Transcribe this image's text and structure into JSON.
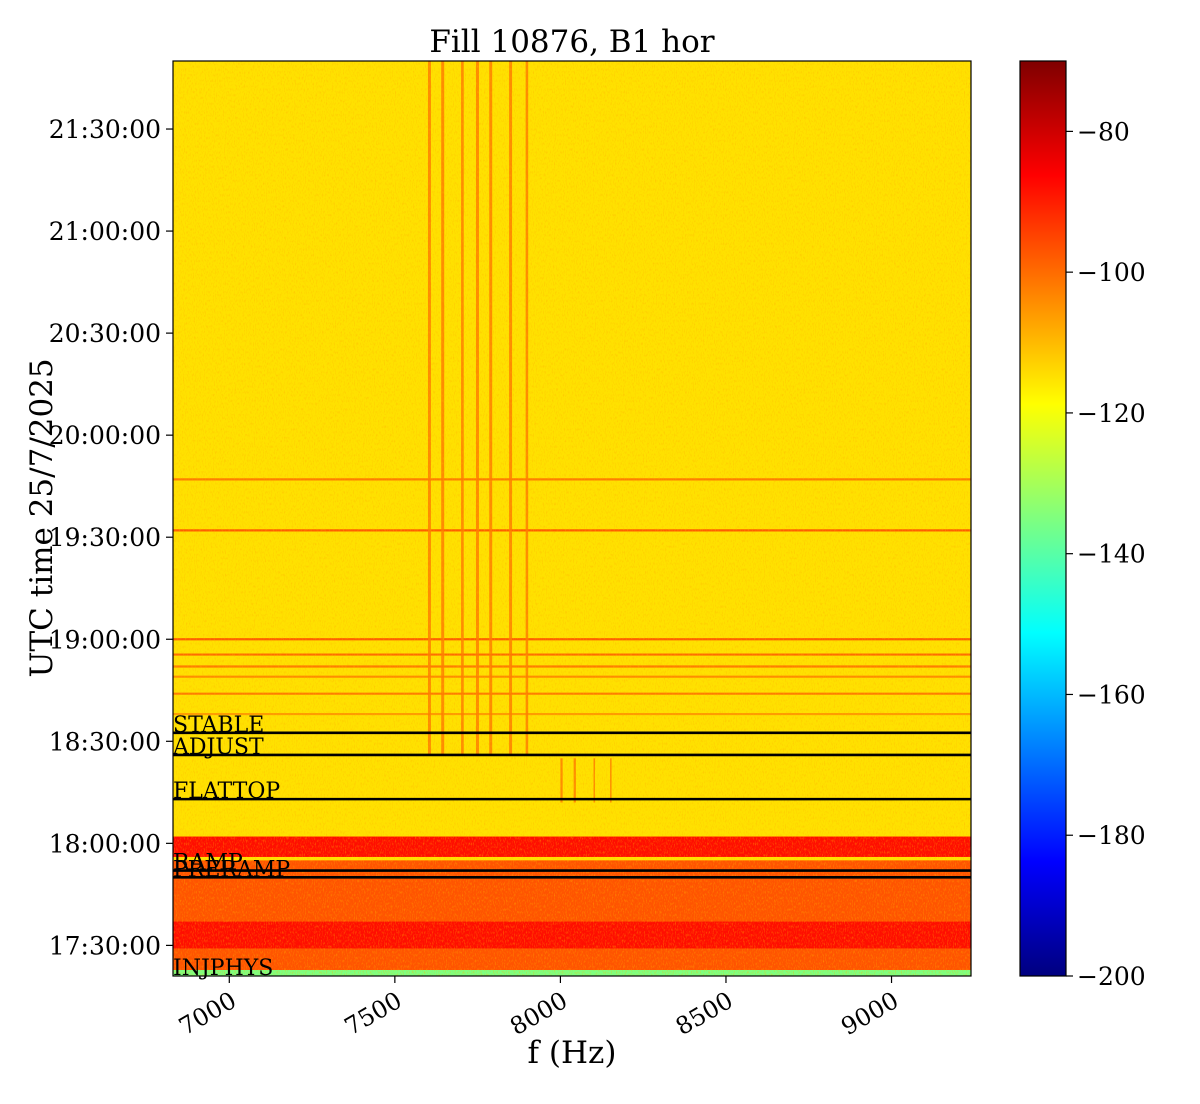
{
  "chart_data": {
    "type": "heatmap",
    "title": "Fill 10876, B1 hor",
    "xlabel": "f (Hz)",
    "ylabel": "UTC time 25/7/2025",
    "xlim": [
      6830,
      9240
    ],
    "ylim": [
      "17:21:00",
      "21:50:00"
    ],
    "x_ticks": [
      7000,
      7500,
      8000,
      8500,
      9000
    ],
    "x_tick_labels": [
      "7000",
      "7500",
      "8000",
      "8500",
      "9000"
    ],
    "y_ticks": [
      "17:30:00",
      "18:00:00",
      "18:30:00",
      "19:00:00",
      "19:30:00",
      "20:00:00",
      "20:30:00",
      "21:00:00",
      "21:30:00"
    ],
    "colormap": "jet",
    "colorbar": {
      "range": [
        -200,
        -70
      ],
      "ticks": [
        -80,
        -100,
        -120,
        -140,
        -160,
        -180,
        -200
      ],
      "tick_labels": [
        "−80",
        "−100",
        "−120",
        "−140",
        "−160",
        "−180",
        "−200"
      ]
    },
    "background_level": -115,
    "colormap_stops": [
      "#00007f",
      "#0000ff",
      "#007fff",
      "#00ffff",
      "#7fff7f",
      "#ffff00",
      "#ff7f00",
      "#ff0000",
      "#7f0000"
    ],
    "beam_modes": [
      {
        "name": "STABLE",
        "time": "18:32:30"
      },
      {
        "name": "ADJUST",
        "time": "18:26:00"
      },
      {
        "name": "FLATTOP",
        "time": "18:13:00"
      },
      {
        "name": "RAMP",
        "time": "17:52:00"
      },
      {
        "name": "PRERAMP",
        "time": "17:50:00"
      },
      {
        "name": "INJPHYS",
        "time": "17:20:00"
      }
    ],
    "spectral_lines": [
      {
        "f_start": 7600,
        "f_end": 7620,
        "t_start": "18:26:00",
        "t_end": "21:50:00"
      },
      {
        "f_start": 7640,
        "f_end": 7660,
        "t_start": "18:26:00",
        "t_end": "21:50:00"
      },
      {
        "f_start": 7700,
        "f_end": 7718,
        "t_start": "18:26:00",
        "t_end": "21:50:00"
      },
      {
        "f_start": 7745,
        "f_end": 7765,
        "t_start": "18:26:00",
        "t_end": "21:50:00"
      },
      {
        "f_start": 7785,
        "f_end": 7805,
        "t_start": "18:26:00",
        "t_end": "21:50:00"
      },
      {
        "f_start": 7845,
        "f_end": 7865,
        "t_start": "18:26:00",
        "t_end": "21:50:00"
      },
      {
        "f_start": 7895,
        "f_end": 7912,
        "t_start": "18:26:00",
        "t_end": "21:50:00"
      },
      {
        "f_start": 8000,
        "f_end": 8015,
        "t_start": "18:12:00",
        "t_end": "18:25:00"
      },
      {
        "f_start": 8040,
        "f_end": 8055,
        "t_start": "18:12:00",
        "t_end": "18:25:00"
      },
      {
        "f_start": 8100,
        "f_end": 8110,
        "t_start": "18:12:00",
        "t_end": "18:25:00"
      },
      {
        "f_start": 8150,
        "f_end": 8160,
        "t_start": "18:12:00",
        "t_end": "18:25:00"
      }
    ],
    "horizontal_features": [
      {
        "time": "19:47:00",
        "level": -102
      },
      {
        "time": "19:32:00",
        "level": -98
      },
      {
        "time": "19:00:00",
        "level": -98
      },
      {
        "time": "18:55:30",
        "level": -100
      },
      {
        "time": "18:52:00",
        "level": -102
      },
      {
        "time": "18:49:00",
        "level": -104
      },
      {
        "time": "18:44:00",
        "level": -102
      },
      {
        "time": "18:38:00",
        "level": -106
      }
    ],
    "high_activity_bands": [
      {
        "t_start": "17:56:00",
        "t_end": "18:02:00",
        "level": -88
      },
      {
        "t_start": "17:35:00",
        "t_end": "17:55:00",
        "level": -97
      },
      {
        "t_start": "17:29:00",
        "t_end": "17:37:00",
        "level": -88
      },
      {
        "t_start": "17:22:00",
        "t_end": "17:29:00",
        "level": -97
      }
    ]
  }
}
